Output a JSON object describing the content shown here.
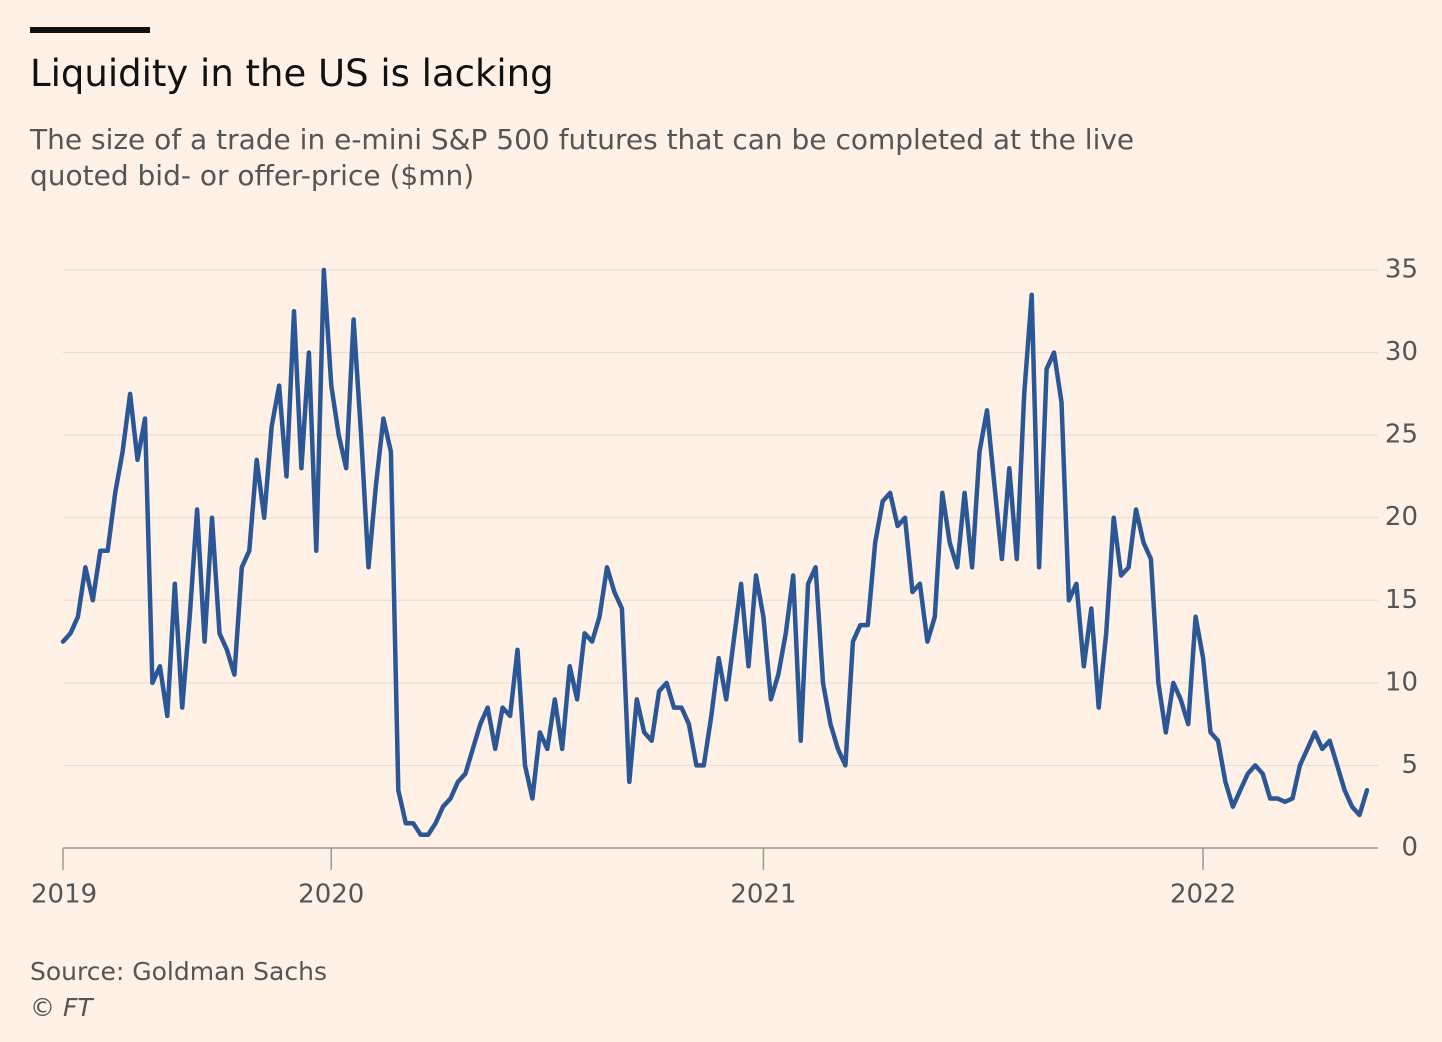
{
  "chart_data": {
    "type": "line",
    "title": "Liquidity in the US is lacking",
    "subtitle": "The size of a trade in e-mini S&P 500 futures that can be completed at the live quoted bid- or offer-price ($mn)",
    "source": "Source: Goldman Sachs",
    "credit": "© FT",
    "categories": [
      "2019",
      null,
      null,
      null,
      null,
      null,
      null,
      null,
      null,
      null,
      null,
      null,
      null,
      null,
      null,
      null,
      null,
      null,
      null,
      null,
      null,
      null,
      null,
      null,
      null,
      null,
      null,
      null,
      null,
      null,
      null,
      null,
      null,
      null,
      null,
      null,
      "2020",
      null,
      null,
      null,
      null,
      null,
      null,
      null,
      null,
      null,
      null,
      null,
      null,
      null,
      null,
      null,
      null,
      null,
      null,
      null,
      null,
      null,
      null,
      null,
      null,
      null,
      null,
      null,
      null,
      null,
      null,
      null,
      null,
      null,
      null,
      null,
      null,
      null,
      null,
      null,
      null,
      null,
      null,
      null,
      null,
      null,
      null,
      null,
      null,
      null,
      null,
      null,
      null,
      null,
      null,
      null,
      null,
      null,
      "2021",
      null,
      null,
      null,
      null,
      null,
      null,
      null,
      null,
      null,
      null,
      null,
      null,
      null,
      null,
      null,
      null,
      null,
      null,
      null,
      null,
      null,
      null,
      null,
      null,
      null,
      null,
      null,
      null,
      null,
      null,
      null,
      null,
      null,
      null,
      null,
      null,
      null,
      null,
      null,
      null,
      null,
      null,
      null,
      null,
      null,
      null,
      null,
      null,
      null,
      null,
      null,
      null,
      null,
      null,
      null,
      null,
      null,
      null,
      "2022",
      null,
      null,
      null,
      null,
      null,
      null,
      null,
      null,
      null,
      null,
      null,
      null,
      null,
      null,
      null,
      null,
      null,
      null,
      null,
      null,
      null,
      null
    ],
    "series": [
      {
        "color": "#2b5797",
        "values": [
          12.5,
          13,
          14,
          17,
          15,
          18,
          18,
          21.5,
          24,
          27.5,
          23.5,
          26,
          10,
          11,
          8,
          16,
          8.5,
          14,
          20.5,
          12.5,
          20,
          13,
          12,
          10.5,
          17,
          18,
          23.5,
          20,
          25.5,
          28,
          22.5,
          32.5,
          23,
          30,
          18,
          35,
          28,
          25,
          23,
          32,
          25,
          17,
          22,
          26,
          24,
          3.5,
          1.5,
          1.5,
          0.8,
          0.8,
          1.5,
          2.5,
          3,
          4,
          4.5,
          6,
          7.5,
          8.5,
          6,
          8.5,
          8,
          12,
          5,
          3,
          7,
          6,
          9,
          6,
          11,
          9,
          13,
          12.5,
          14,
          17,
          15.5,
          14.5,
          4,
          9,
          7,
          6.5,
          9.5,
          10,
          8.5,
          8.5,
          7.5,
          5,
          5,
          8,
          11.5,
          9,
          12.5,
          16,
          11,
          16.5,
          14,
          9,
          10.5,
          13,
          16.5,
          6.5,
          16,
          17,
          10,
          7.5,
          6,
          5,
          12.5,
          13.5,
          13.5,
          18.5,
          21,
          21.5,
          19.5,
          20,
          15.5,
          16,
          12.5,
          14,
          21.5,
          18.5,
          17,
          21.5,
          17,
          24,
          26.5,
          22,
          17.5,
          23,
          17.5,
          27.5,
          33.5,
          17,
          29,
          30,
          27,
          15,
          16,
          11,
          14.5,
          8.5,
          13,
          20,
          16.5,
          17,
          20.5,
          18.5,
          17.5,
          10,
          7,
          10,
          9,
          7.5,
          14,
          11.5,
          7,
          6.5,
          4,
          2.5,
          3.5,
          4.5,
          5,
          4.5,
          3,
          3,
          2.8,
          3,
          5,
          6,
          7,
          6,
          6.5,
          5,
          3.5,
          2.5,
          2,
          3.5
        ]
      }
    ],
    "ylim": [
      0,
      35
    ],
    "yticks": [
      0,
      5,
      10,
      15,
      20,
      25,
      30,
      35
    ],
    "grid": true
  }
}
